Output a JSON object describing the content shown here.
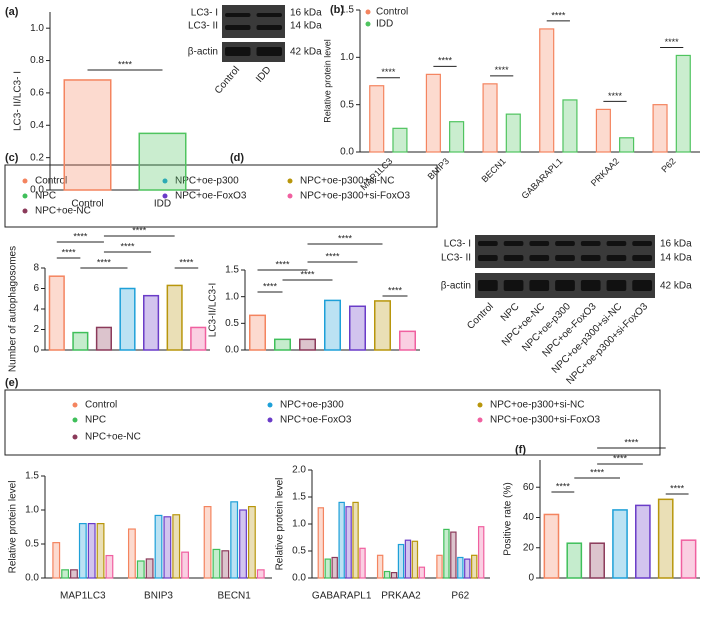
{
  "panels": [
    "(a)",
    "(b)",
    "(c)",
    "(d)",
    "(e)",
    "(f)"
  ],
  "blots": {
    "a": {
      "rows": [
        "LC3- I",
        "LC3- II",
        "β-actin"
      ],
      "sizes": [
        "16 kDa",
        "14 kDa",
        "42 kDa"
      ],
      "lanes": [
        "Control",
        "IDD"
      ]
    },
    "d": {
      "rows": [
        "LC3- I",
        "LC3- II",
        "β-actin"
      ],
      "sizes": [
        "16 kDa",
        "14 kDa",
        "42 kDa"
      ]
    }
  },
  "chart_data": [
    {
      "type": "bar",
      "ylabel": "LC3- II/LC3- I",
      "categories": [
        "Control",
        "IDD"
      ],
      "values": [
        0.68,
        0.35
      ],
      "colors": [
        "#f4845f",
        "#4fc45f"
      ],
      "ylim": [
        0,
        1.1
      ],
      "yticks": [
        {
          "value": 0,
          "label": "0.0"
        },
        0.2,
        0.4,
        0.6,
        0.8,
        {
          "value": 1,
          "label": "1.0"
        }
      ],
      "annotations": [
        "****"
      ]
    },
    {
      "type": "grouped_bar",
      "ylabel": "Relative protein level",
      "legend": "upper left",
      "categories": [
        "MAP1LC3",
        "BNIP3",
        "BECN1",
        "GABARAPL1",
        "PRKAA2",
        "P62"
      ],
      "series": [
        {
          "name": "Control",
          "color": "#f4845f",
          "values": [
            0.7,
            0.82,
            0.72,
            1.3,
            0.45,
            0.5
          ]
        },
        {
          "name": "IDD",
          "color": "#4fc45f",
          "values": [
            0.25,
            0.32,
            0.4,
            0.55,
            0.15,
            1.02
          ]
        }
      ],
      "ylim": [
        0,
        1.5
      ],
      "yticks": [
        {
          "value": 0,
          "label": "0.0"
        },
        0.5,
        {
          "value": 1,
          "label": "1.0"
        },
        1.5
      ],
      "annotations": [
        "****",
        "****",
        "****",
        "****",
        "****",
        "****"
      ]
    },
    {
      "type": "bar",
      "ylabel": "Number of autophagosomes",
      "categories": [
        "Control",
        "NPC",
        "NPC+oe-NC",
        "NPC+oe-p300",
        "NPC+oe-FoxO3",
        "NPC+oe-p300+si-NC",
        "NPC+oe-p300+si-FoxO3"
      ],
      "values": [
        7.2,
        1.7,
        2.2,
        6.0,
        5.3,
        6.3,
        2.2
      ],
      "colors": [
        "#f4845f",
        "#3fbf5a",
        "#8b3a5a",
        "#1ea0d8",
        "#6a3cc8",
        "#b8960c",
        "#f060a0"
      ],
      "ylim": [
        0,
        8
      ],
      "yticks": [
        0,
        2,
        4,
        6,
        8
      ],
      "annotations": [
        "****",
        "****",
        "****",
        "****",
        "****",
        "****"
      ]
    },
    {
      "type": "bar",
      "ylabel": "LC3-II/LC3-I",
      "categories": [
        "Control",
        "NPC",
        "NPC+oe-NC",
        "NPC+oe-p300",
        "NPC+oe-FoxO3",
        "NPC+oe-p300+si-NC",
        "NPC+oe-p300+si-FoxO3"
      ],
      "values": [
        0.65,
        0.2,
        0.2,
        0.93,
        0.82,
        0.92,
        0.35
      ],
      "colors": [
        "#f4845f",
        "#3fbf5a",
        "#8b3a5a",
        "#1ea0d8",
        "#6a3cc8",
        "#b8960c",
        "#f060a0"
      ],
      "ylim": [
        0,
        1.5
      ],
      "yticks": [
        {
          "value": 0,
          "label": "0.0"
        },
        0.5,
        {
          "value": 1,
          "label": "1.0"
        },
        1.5
      ],
      "annotations": [
        "****",
        "****",
        "****",
        "****",
        "****",
        "****"
      ]
    },
    {
      "type": "grouped_bar",
      "ylabel": "Relative protein level",
      "categories": [
        "MAP1LC3",
        "BNIP3",
        "BECN1"
      ],
      "series": [
        {
          "name": "Control",
          "color": "#f4845f",
          "values": [
            0.52,
            0.72,
            1.05
          ]
        },
        {
          "name": "NPC",
          "color": "#3fbf5a",
          "values": [
            0.12,
            0.25,
            0.42
          ]
        },
        {
          "name": "NPC+oe-NC",
          "color": "#8b3a5a",
          "values": [
            0.12,
            0.28,
            0.4
          ]
        },
        {
          "name": "NPC+oe-p300",
          "color": "#1ea0d8",
          "values": [
            0.8,
            0.92,
            1.12
          ]
        },
        {
          "name": "NPC+oe-FoxO3",
          "color": "#6a3cc8",
          "values": [
            0.8,
            0.9,
            1.0
          ]
        },
        {
          "name": "NPC+oe-p300+si-NC",
          "color": "#b8960c",
          "values": [
            0.8,
            0.93,
            1.05
          ]
        },
        {
          "name": "NPC+oe-p300+si-FoxO3",
          "color": "#f060a0",
          "values": [
            0.33,
            0.38,
            0.12
          ]
        }
      ],
      "ylim": [
        0,
        1.5
      ],
      "yticks": [
        {
          "value": 0,
          "label": "0.0"
        },
        0.5,
        {
          "value": 1,
          "label": "1.0"
        },
        1.5
      ]
    },
    {
      "type": "grouped_bar",
      "ylabel": "Relative protein level",
      "categories": [
        "GABARAPL1",
        "PRKAA2",
        "P62"
      ],
      "series": [
        {
          "name": "Control",
          "color": "#f4845f",
          "values": [
            1.3,
            0.42,
            0.42
          ]
        },
        {
          "name": "NPC",
          "color": "#3fbf5a",
          "values": [
            0.35,
            0.12,
            0.9
          ]
        },
        {
          "name": "NPC+oe-NC",
          "color": "#8b3a5a",
          "values": [
            0.38,
            0.1,
            0.85
          ]
        },
        {
          "name": "NPC+oe-p300",
          "color": "#1ea0d8",
          "values": [
            1.4,
            0.62,
            0.38
          ]
        },
        {
          "name": "NPC+oe-FoxO3",
          "color": "#6a3cc8",
          "values": [
            1.32,
            0.7,
            0.35
          ]
        },
        {
          "name": "NPC+oe-p300+si-NC",
          "color": "#b8960c",
          "values": [
            1.4,
            0.68,
            0.42
          ]
        },
        {
          "name": "NPC+oe-p300+si-FoxO3",
          "color": "#f060a0",
          "values": [
            0.55,
            0.2,
            0.95
          ]
        }
      ],
      "ylim": [
        0,
        2
      ],
      "yticks": [
        {
          "value": 0,
          "label": "0.0"
        },
        0.5,
        {
          "value": 1,
          "label": "1.0"
        },
        1.5,
        {
          "value": 2,
          "label": "2.0"
        }
      ]
    },
    {
      "type": "bar",
      "ylabel": "Positive rate (%)",
      "categories": [
        "Control",
        "NPC",
        "NPC+oe-NC",
        "NPC+oe-p300",
        "NPC+oe-FoxO3",
        "NPC+oe-p300+si-NC",
        "NPC+oe-p300+si-FoxO3"
      ],
      "values": [
        42,
        23,
        23,
        45,
        48,
        52,
        25
      ],
      "colors": [
        "#f4845f",
        "#3fbf5a",
        "#8b3a5a",
        "#1ea0d8",
        "#6a3cc8",
        "#b8960c",
        "#f060a0"
      ],
      "ylim": [
        0,
        78
      ],
      "yticks": [
        0,
        20,
        40,
        60
      ],
      "annotations": [
        "****",
        "****",
        "****",
        "****",
        "****",
        "****"
      ]
    }
  ]
}
